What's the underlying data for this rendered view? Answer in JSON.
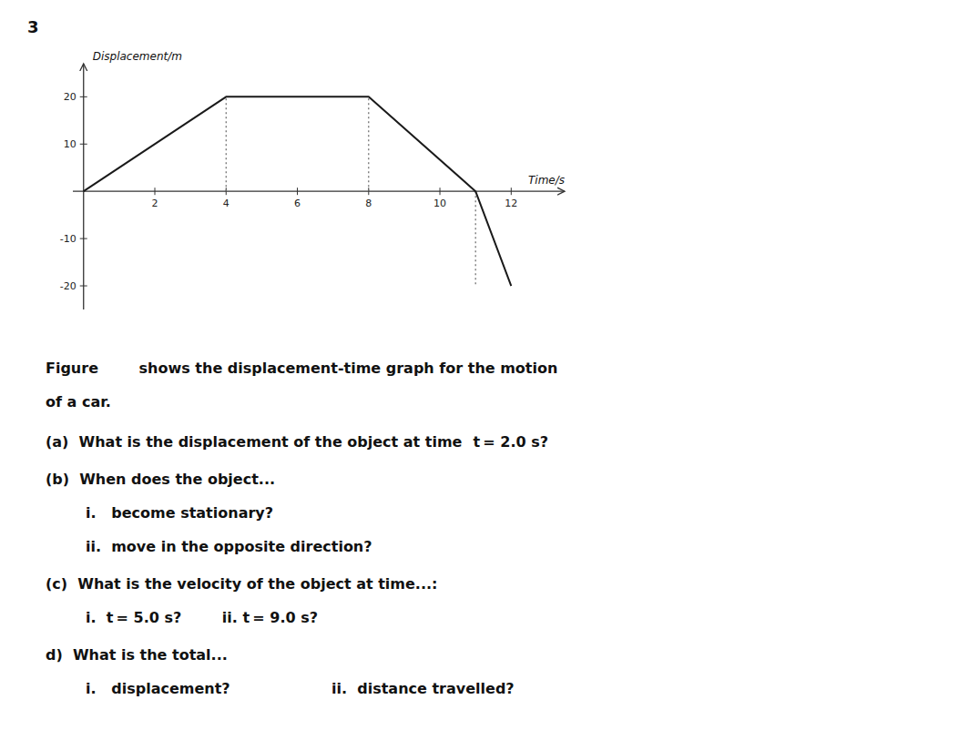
{
  "chart_data": {
    "type": "line",
    "title": "3",
    "x": [
      0,
      4,
      8,
      11,
      12
    ],
    "values": [
      0,
      20,
      20,
      0,
      -20
    ],
    "color": "#1a1a1a",
    "xlim": [
      -0.3,
      13.5
    ],
    "ylim": [
      -25,
      27
    ],
    "xticks": [
      2,
      4,
      6,
      8,
      10,
      12
    ],
    "yticks": [
      -20,
      -10,
      10,
      20
    ],
    "xlabel": "Time/s",
    "ylabel": "Displacement/m",
    "vlines": [
      {
        "x": 4,
        "y0": 0,
        "y1": 20
      },
      {
        "x": 8,
        "y0": 0,
        "y1": 20
      },
      {
        "x": 11,
        "y0": 0,
        "y1": -20
      }
    ],
    "annotations": [
      "Figure        shows the displacement-time graph for the motion",
      "of a car.",
      "(a)  What is the displacement of the object at time   t = 2.0 s?",
      "(b)  When does the object...",
      "i.   become stationary?",
      "ii.  move in the opposite direction?",
      "(c)  What is the velocity of the object at time...:",
      "i.  t = 5.0 s?        ii. t = 9.0 s?",
      "d)  What is the total...",
      "i.   displacement?                    ii.  distance travelled?"
    ]
  }
}
